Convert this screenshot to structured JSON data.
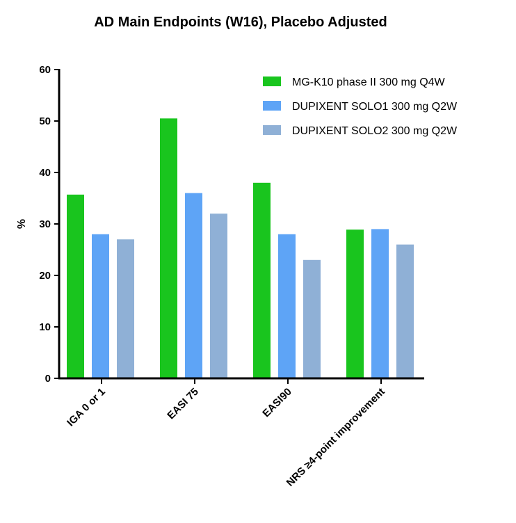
{
  "chart_data": {
    "type": "bar",
    "title": "AD Main Endpoints (W16), Placebo Adjusted",
    "xlabel": "",
    "ylabel": "%",
    "ylim": [
      0,
      60
    ],
    "yticks": [
      0,
      10,
      20,
      30,
      40,
      50,
      60
    ],
    "ytick_labels": [
      "0",
      "10",
      "20",
      "30",
      "40",
      "50",
      "60"
    ],
    "categories": [
      "IGA 0 or 1",
      "EASI 75",
      "EASI90",
      "NRS ≥4-point improvement"
    ],
    "series": [
      {
        "name": "MG-K10 phase II 300 mg Q4W",
        "values": [
          35.7,
          50.5,
          38.0,
          28.9
        ],
        "color": "#19c51e"
      },
      {
        "name": "DUPIXENT SOLO1 300 mg Q2W",
        "values": [
          28,
          36,
          28,
          29
        ],
        "color": "#5ea4f6"
      },
      {
        "name": "DUPIXENT SOLO2 300 mg Q2W",
        "values": [
          27,
          32,
          23,
          26
        ],
        "color": "#8fb0d6"
      }
    ],
    "grid": false,
    "legend_position": "top-right"
  }
}
